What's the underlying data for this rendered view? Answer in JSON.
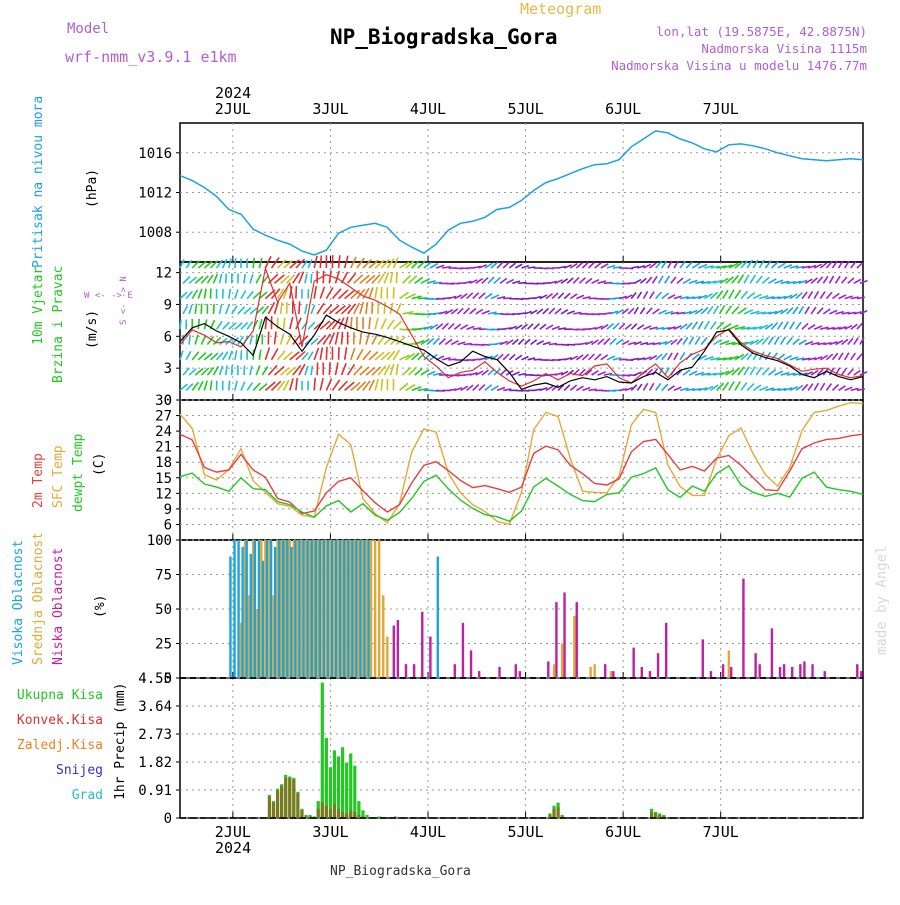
{
  "header": {
    "meteogram": "Meteogram",
    "station": "NP_Biogradska_Gora",
    "model_label": "Model",
    "model_name": "wrf-nmm_v3.9.1 e1km",
    "lonlat": "lon,lat (19.5875E, 42.8875N)",
    "elevation": "Nadmorska Visina 1115m",
    "model_elevation": "Nadmorska Visina u modelu 1476.77m",
    "footer_station": "NP_Biogradska_Gora",
    "made_by": "made by Angel"
  },
  "colors": {
    "pressure": "#1ba3e0",
    "wind_speed": "#000000",
    "wind_gust": "#e03030",
    "temp_2m": "#e84040",
    "temp_sfc": "#e8a838",
    "dewpoint": "#22c822",
    "high_cloud": "#1ba3e0",
    "mid_cloud": "#e0a838",
    "low_cloud": "#c020a0",
    "total_precip": "#22c822",
    "conv_precip": "#e03030",
    "frz_precip": "#f08020",
    "snow": "#3030d0",
    "hail": "#20c0c0",
    "grid": "#9a9a9a"
  },
  "chart_data": [
    {
      "type": "line",
      "panel": "pressure",
      "ylabel_1": "Pritisak na nivou mora",
      "ylabel_2": "(hPa)",
      "ylim": [
        1005,
        1019
      ],
      "yticks": [
        1008,
        1012,
        1016
      ],
      "grid": true,
      "x_hours": [
        0,
        3,
        6,
        9,
        12,
        15,
        18,
        21,
        24,
        27,
        30,
        33,
        36,
        39,
        42,
        45,
        48,
        51,
        54,
        57,
        60,
        63,
        66,
        69,
        72,
        75,
        78,
        81,
        84,
        87,
        90,
        93,
        96,
        99,
        102,
        105,
        108,
        111,
        114,
        117,
        120,
        123,
        126,
        129,
        132,
        135,
        138,
        141,
        144,
        147,
        150,
        153,
        156,
        159,
        162,
        165,
        168
      ],
      "values": [
        1013.7,
        1013.2,
        1012.5,
        1011.6,
        1010.3,
        1009.8,
        1008.3,
        1007.7,
        1007.2,
        1006.8,
        1006.1,
        1005.7,
        1006.2,
        1007.9,
        1008.5,
        1008.7,
        1008.9,
        1008.5,
        1007.2,
        1006.5,
        1005.9,
        1006.8,
        1008.2,
        1008.9,
        1009.1,
        1009.5,
        1010.3,
        1010.5,
        1011.2,
        1012.2,
        1013.0,
        1013.4,
        1013.9,
        1014.4,
        1014.8,
        1014.9,
        1015.3,
        1016.6,
        1017.4,
        1018.2,
        1018.0,
        1017.4,
        1017.0,
        1016.4,
        1016.1,
        1016.8,
        1016.9,
        1016.7,
        1016.4,
        1016.0,
        1015.7,
        1015.4,
        1015.3,
        1015.2,
        1015.3,
        1015.4,
        1015.3
      ]
    },
    {
      "type": "line",
      "panel": "wind",
      "ylabel_1": "10m Vjetar",
      "ylabel_2": "Brzina i Pravac",
      "ylabel_3": "(m/s)",
      "compass": "W <- -> E",
      "compass_ns": "S <- -> N",
      "ylim": [
        0,
        13
      ],
      "yticks": [
        0,
        3,
        6,
        9,
        12
      ],
      "grid": true,
      "x_hours": [
        0,
        3,
        6,
        9,
        12,
        15,
        18,
        21,
        24,
        27,
        30,
        33,
        36,
        39,
        42,
        45,
        48,
        51,
        54,
        57,
        60,
        63,
        66,
        69,
        72,
        75,
        78,
        81,
        84,
        87,
        90,
        93,
        96,
        99,
        102,
        105,
        108,
        111,
        114,
        117,
        120,
        123,
        126,
        129,
        132,
        135,
        138,
        141,
        144,
        147,
        150,
        153,
        156,
        159,
        162,
        165,
        168
      ],
      "series": [
        {
          "name": "speed",
          "values": [
            5.5,
            6.8,
            7.2,
            6.5,
            6.0,
            5.4,
            4.2,
            7.8,
            6.9,
            6.2,
            4.6,
            6.1,
            8.0,
            7.3,
            6.8,
            6.4,
            6.2,
            5.9,
            5.5,
            5.1,
            4.7,
            3.9,
            3.2,
            3.6,
            4.6,
            4.1,
            3.8,
            2.6,
            1.0,
            1.4,
            1.6,
            1.2,
            1.8,
            2.1,
            1.9,
            2.2,
            1.7,
            1.6,
            2.2,
            2.6,
            1.9,
            2.8,
            3.1,
            4.6,
            6.4,
            6.6,
            5.2,
            4.4,
            4.0,
            3.7,
            3.2,
            2.4,
            2.1,
            2.7,
            2.2,
            1.9,
            2.2
          ]
        },
        {
          "name": "gust",
          "values": [
            5.2,
            6.6,
            6.1,
            5.4,
            5.5,
            5.0,
            6.5,
            12.4,
            9.2,
            11.0,
            5.0,
            11.2,
            11.8,
            11.4,
            10.6,
            9.8,
            9.4,
            8.8,
            8.1,
            6.1,
            4.1,
            3.2,
            2.1,
            2.6,
            2.8,
            3.6,
            2.6,
            1.8,
            1.3,
            1.8,
            2.5,
            1.9,
            2.5,
            2.3,
            3.2,
            3.4,
            2.1,
            1.6,
            2.6,
            3.4,
            2.1,
            3.5,
            4.3,
            4.8,
            6.0,
            6.7,
            5.4,
            4.6,
            4.2,
            3.9,
            3.3,
            2.7,
            2.9,
            3.0,
            2.4,
            2.1,
            2.3
          ]
        }
      ]
    },
    {
      "type": "line",
      "panel": "temperature",
      "ylabel_1": "2m Temp",
      "ylabel_2": "SFC Temp",
      "ylabel_3": "dewpt Temp",
      "ylabel_4": "(C)",
      "ylim": [
        3,
        30
      ],
      "yticks": [
        6,
        9,
        12,
        15,
        18,
        21,
        24,
        27,
        30
      ],
      "grid": true,
      "x_hours": [
        0,
        3,
        6,
        9,
        12,
        15,
        18,
        21,
        24,
        27,
        30,
        33,
        36,
        39,
        42,
        45,
        48,
        51,
        54,
        57,
        60,
        63,
        66,
        69,
        72,
        75,
        78,
        81,
        84,
        87,
        90,
        93,
        96,
        99,
        102,
        105,
        108,
        111,
        114,
        117,
        120,
        123,
        126,
        129,
        132,
        135,
        138,
        141,
        144,
        147,
        150,
        153,
        156,
        159,
        162,
        165,
        168
      ],
      "series": [
        {
          "name": "2m",
          "values": [
            23.4,
            22.3,
            17.0,
            16.1,
            16.5,
            19.5,
            16.5,
            15.1,
            11.0,
            10.3,
            8.1,
            8.6,
            12.1,
            14.3,
            15.0,
            12.5,
            10.2,
            8.4,
            9.8,
            14.0,
            17.4,
            18.1,
            16.4,
            14.5,
            13.1,
            13.5,
            12.9,
            12.2,
            13.2,
            19.7,
            21.1,
            20.4,
            17.4,
            15.8,
            13.9,
            13.6,
            14.8,
            20.0,
            22.0,
            22.4,
            19.5,
            16.5,
            17.2,
            16.3,
            18.8,
            19.3,
            17.4,
            15.0,
            12.7,
            12.5,
            16.3,
            20.6,
            21.7,
            22.4,
            22.6,
            23.1,
            23.4
          ]
        },
        {
          "name": "SFC",
          "values": [
            27.3,
            24.5,
            15.6,
            14.6,
            16.6,
            20.6,
            14.4,
            12.2,
            10.0,
            9.5,
            7.8,
            7.4,
            17.0,
            23.4,
            21.4,
            11.0,
            8.1,
            6.3,
            10.0,
            20.0,
            24.4,
            23.8,
            15.9,
            12.1,
            9.8,
            8.5,
            6.6,
            6.0,
            12.2,
            24.3,
            27.6,
            26.8,
            18.7,
            12.4,
            12.2,
            12.1,
            15.4,
            25.2,
            28.2,
            27.6,
            17.5,
            13.3,
            11.6,
            11.6,
            18.6,
            23.1,
            24.6,
            19.6,
            15.6,
            13.4,
            17.0,
            24.1,
            27.6,
            28.0,
            28.8,
            29.5,
            29.3
          ]
        },
        {
          "name": "dewpt",
          "values": [
            15.2,
            15.9,
            13.8,
            13.2,
            12.4,
            15.0,
            12.9,
            12.7,
            10.4,
            9.8,
            8.4,
            7.4,
            9.6,
            10.6,
            8.4,
            10.0,
            7.8,
            6.8,
            8.3,
            11.0,
            14.3,
            15.5,
            12.9,
            10.7,
            9.1,
            7.9,
            7.5,
            6.6,
            8.6,
            13.2,
            14.9,
            13.4,
            11.8,
            10.6,
            10.4,
            11.8,
            12.1,
            15.1,
            15.8,
            16.9,
            12.7,
            11.2,
            13.4,
            12.4,
            15.8,
            17.3,
            13.6,
            12.2,
            11.4,
            12.0,
            11.3,
            14.9,
            16.1,
            13.2,
            12.7,
            12.4,
            11.8
          ]
        }
      ]
    },
    {
      "type": "bar",
      "panel": "clouds",
      "ylabel_1": "Visoka Oblacnost",
      "ylabel_2": "Srednja Oblacnost",
      "ylabel_3": "Niska Oblacnost",
      "ylabel_4": "(%)",
      "ylim": [
        0,
        100
      ],
      "yticks": [
        0,
        25,
        50,
        75,
        100
      ],
      "grid": true,
      "x_hours": [
        13,
        14,
        15,
        16,
        17,
        18,
        19,
        20,
        21,
        22,
        23,
        24,
        25,
        26,
        27,
        28,
        29,
        30,
        31,
        32,
        33,
        34,
        35,
        36,
        37,
        38,
        39,
        40,
        41,
        42,
        43,
        44,
        45,
        46,
        47,
        48,
        49,
        50,
        51,
        52,
        53,
        55,
        57,
        59,
        61,
        64,
        67,
        69,
        71,
        73,
        78,
        82,
        83,
        87,
        90,
        92,
        94,
        97,
        101,
        102,
        103,
        104,
        106,
        111,
        113,
        115,
        117,
        119,
        128,
        130,
        133,
        135,
        138,
        141,
        142,
        145,
        147,
        148,
        150,
        152,
        153,
        155,
        158,
        166,
        167
      ],
      "series": [
        {
          "name": "high",
          "values": [
            88,
            100,
            100,
            95,
            100,
            90,
            100,
            100,
            85,
            100,
            100,
            95,
            100,
            100,
            100,
            95,
            100,
            100,
            100,
            100,
            100,
            100,
            100,
            100,
            100,
            100,
            100,
            100,
            100,
            100,
            100,
            100,
            100,
            100,
            100,
            0,
            0,
            0,
            0,
            0,
            0,
            0,
            0,
            0,
            0,
            88,
            0,
            0,
            0,
            0,
            0,
            0,
            0,
            0,
            0,
            0,
            0,
            0,
            0,
            0,
            0,
            0,
            0,
            0,
            0,
            0,
            0,
            0,
            0,
            0,
            0,
            0,
            0,
            0,
            0,
            0,
            0,
            0,
            0,
            0,
            0,
            0,
            0,
            0,
            0
          ]
        },
        {
          "name": "mid",
          "values": [
            0,
            0,
            40,
            100,
            60,
            100,
            50,
            100,
            100,
            100,
            60,
            100,
            100,
            100,
            100,
            100,
            100,
            100,
            100,
            100,
            100,
            100,
            100,
            100,
            100,
            100,
            100,
            100,
            100,
            100,
            100,
            100,
            100,
            100,
            100,
            100,
            100,
            60,
            30,
            0,
            0,
            0,
            0,
            0,
            0,
            0,
            0,
            0,
            0,
            0,
            0,
            0,
            0,
            0,
            0,
            10,
            25,
            45,
            8,
            10,
            0,
            0,
            5,
            0,
            0,
            0,
            0,
            0,
            0,
            0,
            0,
            20,
            0,
            0,
            0,
            0,
            0,
            0,
            0,
            0,
            0,
            0,
            0,
            0,
            0
          ]
        },
        {
          "name": "low",
          "values": [
            0,
            0,
            0,
            0,
            0,
            0,
            0,
            0,
            0,
            0,
            0,
            0,
            0,
            0,
            0,
            0,
            0,
            0,
            0,
            0,
            0,
            0,
            0,
            0,
            0,
            0,
            0,
            0,
            0,
            0,
            0,
            0,
            0,
            0,
            0,
            0,
            0,
            0,
            0,
            38,
            42,
            10,
            10,
            48,
            30,
            0,
            10,
            40,
            20,
            5,
            8,
            10,
            5,
            0,
            12,
            55,
            62,
            55,
            0,
            0,
            0,
            10,
            5,
            22,
            8,
            5,
            18,
            40,
            28,
            5,
            10,
            8,
            72,
            18,
            10,
            36,
            8,
            10,
            8,
            10,
            12,
            10,
            5,
            10,
            5
          ]
        }
      ]
    },
    {
      "type": "bar",
      "panel": "precip",
      "legend": [
        "Ukupna Kisa",
        "Konvek.Kisa",
        "Zaledj.Kisa",
        "Snijeg",
        "Grad"
      ],
      "ylabel": "1hr Precip (mm)",
      "ylim": [
        0,
        4.55
      ],
      "yticks": [
        0,
        0.91,
        1.82,
        2.73,
        3.64,
        4.55
      ],
      "grid": true,
      "x_hours": [
        22,
        23,
        24,
        25,
        26,
        27,
        28,
        29,
        30,
        31,
        32,
        33,
        34,
        35,
        36,
        37,
        38,
        39,
        40,
        41,
        42,
        43,
        44,
        45,
        46,
        49,
        53,
        91,
        92,
        93,
        94,
        116,
        117,
        118,
        119
      ],
      "series": [
        {
          "name": "total",
          "values": [
            0.75,
            0.55,
            0.95,
            1.1,
            1.4,
            1.35,
            1.3,
            0.85,
            0.3,
            0.1,
            0.1,
            0.05,
            0.55,
            4.4,
            2.6,
            1.65,
            2.2,
            2.0,
            2.3,
            1.8,
            2.1,
            1.7,
            0.55,
            0.25,
            0.1,
            0.05,
            0.05,
            0.15,
            0.4,
            0.5,
            0.1,
            0.3,
            0.2,
            0.15,
            0.1
          ]
        },
        {
          "name": "conv",
          "values": [
            0.7,
            0.5,
            0.9,
            1.05,
            1.3,
            1.3,
            1.25,
            0.8,
            0.25,
            0.05,
            0.05,
            0.0,
            0.3,
            0.5,
            0.4,
            0.3,
            0.45,
            0.3,
            0.2,
            0.15,
            0.25,
            0.2,
            0.1,
            0.05,
            0.0,
            0.0,
            0.0,
            0.1,
            0.3,
            0.35,
            0.05,
            0.2,
            0.15,
            0.1,
            0.05
          ]
        }
      ]
    }
  ],
  "x_axis": {
    "year": "2024",
    "day_labels": [
      "2JUL",
      "3JUL",
      "4JUL",
      "5JUL",
      "6JUL",
      "7JUL"
    ]
  }
}
